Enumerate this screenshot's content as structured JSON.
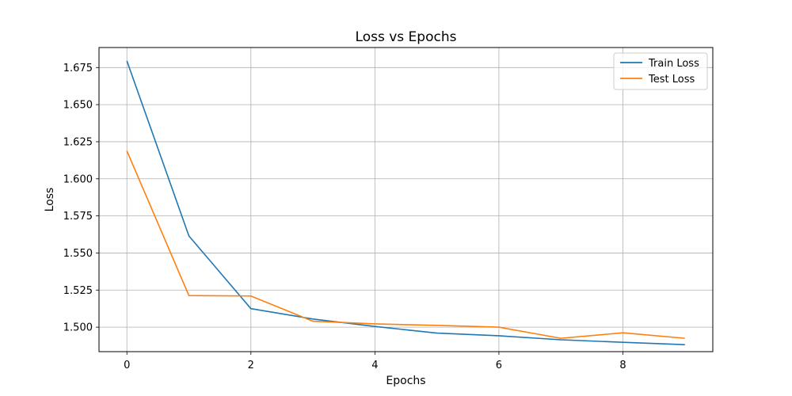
{
  "chart_data": {
    "type": "line",
    "title": "Loss vs Epochs",
    "xlabel": "Epochs",
    "ylabel": "Loss",
    "x": [
      0,
      1,
      2,
      3,
      4,
      5,
      6,
      7,
      8,
      9
    ],
    "xlim": [
      -0.45,
      9.45
    ],
    "ylim": [
      1.4835,
      1.6885
    ],
    "x_ticks": [
      0,
      2,
      4,
      6,
      8
    ],
    "x_tick_labels": [
      "0",
      "2",
      "4",
      "6",
      "8"
    ],
    "y_ticks": [
      1.5,
      1.525,
      1.55,
      1.575,
      1.6,
      1.625,
      1.65,
      1.675
    ],
    "y_tick_labels": [
      "1.500",
      "1.525",
      "1.550",
      "1.575",
      "1.600",
      "1.625",
      "1.650",
      "1.675"
    ],
    "grid": true,
    "legend_position": "top-right",
    "series": [
      {
        "name": "Train Loss",
        "color": "#1f77b4",
        "values": [
          1.6795,
          1.5615,
          1.5125,
          1.5055,
          1.5005,
          1.496,
          1.4942,
          1.4915,
          1.4898,
          1.4882
        ]
      },
      {
        "name": "Test Loss",
        "color": "#ff7f0e",
        "values": [
          1.6188,
          1.5213,
          1.521,
          1.504,
          1.5022,
          1.5012,
          1.5,
          1.4925,
          1.4962,
          1.4925
        ]
      }
    ]
  }
}
